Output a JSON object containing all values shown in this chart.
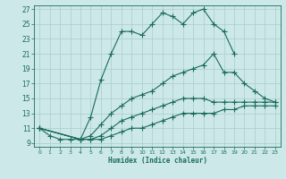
{
  "xlabel": "Humidex (Indice chaleur)",
  "bg_color": "#cce8e8",
  "grid_color": "#aacccc",
  "line_color": "#1a6b5a",
  "line_width": 0.8,
  "marker": "+",
  "markersize": 4,
  "markeredgewidth": 0.8,
  "xlim": [
    -0.5,
    23.5
  ],
  "ylim": [
    8.5,
    27.5
  ],
  "xticks": [
    0,
    1,
    2,
    3,
    4,
    5,
    6,
    7,
    8,
    9,
    10,
    11,
    12,
    13,
    14,
    15,
    16,
    17,
    18,
    19,
    20,
    21,
    22,
    23
  ],
  "yticks": [
    9,
    11,
    13,
    15,
    17,
    19,
    21,
    23,
    25,
    27
  ],
  "series": [
    {
      "x": [
        0,
        1,
        2,
        3,
        4,
        5,
        6,
        7,
        8,
        9,
        10,
        11,
        12,
        13,
        14,
        15,
        16,
        17,
        18,
        19
      ],
      "y": [
        11,
        10,
        9.5,
        9.5,
        9.5,
        12.5,
        17.5,
        21,
        24,
        24,
        23.5,
        25,
        26.5,
        26,
        25,
        26.5,
        27,
        25,
        24,
        21
      ]
    },
    {
      "x": [
        0,
        4,
        5,
        6,
        7,
        8,
        9,
        10,
        11,
        12,
        13,
        14,
        15,
        16,
        17,
        18,
        19,
        20,
        21,
        22,
        23
      ],
      "y": [
        11,
        9.5,
        10,
        11.5,
        13,
        14,
        15,
        15.5,
        16,
        17,
        18,
        18.5,
        19,
        19.5,
        21,
        18.5,
        18.5,
        17,
        16,
        15,
        14.5
      ]
    },
    {
      "x": [
        0,
        4,
        5,
        6,
        7,
        8,
        9,
        10,
        11,
        12,
        13,
        14,
        15,
        16,
        17,
        18,
        19,
        20,
        21,
        22,
        23
      ],
      "y": [
        11,
        9.5,
        9.5,
        10,
        11,
        12,
        12.5,
        13,
        13.5,
        14,
        14.5,
        15,
        15,
        15,
        14.5,
        14.5,
        14.5,
        14.5,
        14.5,
        14.5,
        14.5
      ]
    },
    {
      "x": [
        0,
        4,
        5,
        6,
        7,
        8,
        9,
        10,
        11,
        12,
        13,
        14,
        15,
        16,
        17,
        18,
        19,
        20,
        21,
        22,
        23
      ],
      "y": [
        11,
        9.5,
        9.5,
        9.5,
        10,
        10.5,
        11,
        11,
        11.5,
        12,
        12.5,
        13,
        13,
        13,
        13,
        13.5,
        13.5,
        14,
        14,
        14,
        14
      ]
    }
  ]
}
